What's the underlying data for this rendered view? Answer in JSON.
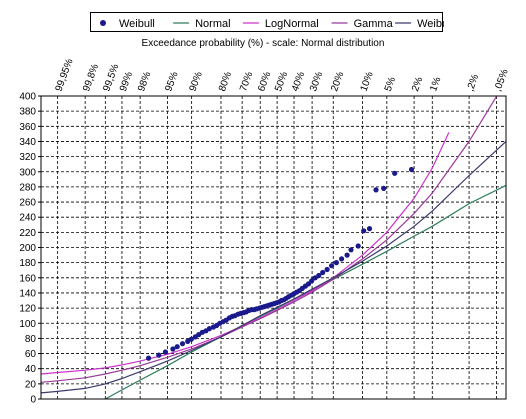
{
  "chart_data": {
    "type": "scatter",
    "title": "Exceedance probability (%) - scale: Normal distribution",
    "xaxis": {
      "scale": "normal-probability",
      "tick_labels": [
        "99,95%",
        "99,8%",
        "99,5%",
        "99%",
        "98%",
        "95%",
        "90%",
        "80%",
        "70%",
        "60%",
        "50%",
        "40%",
        "30%",
        "20%",
        "10%",
        "5%",
        "2%",
        "1%",
        ",2%",
        ",05%"
      ],
      "tick_values": [
        99.95,
        99.8,
        99.5,
        99,
        98,
        95,
        90,
        80,
        70,
        60,
        50,
        40,
        30,
        20,
        10,
        5,
        2,
        1,
        0.2,
        0.05
      ],
      "range": [
        99.98,
        0.03
      ]
    },
    "yaxis": {
      "ylim": [
        0,
        400
      ],
      "tick_labels": [
        "0",
        "20",
        "40",
        "60",
        "80",
        "100",
        "120",
        "140",
        "160",
        "180",
        "200",
        "220",
        "240",
        "260",
        "280",
        "300",
        "320",
        "340",
        "360",
        "380",
        "400"
      ],
      "tick_values": [
        0,
        20,
        40,
        60,
        80,
        100,
        120,
        140,
        160,
        180,
        200,
        220,
        240,
        260,
        280,
        300,
        320,
        340,
        360,
        380,
        400
      ]
    },
    "grid": true,
    "legend_placement": "top",
    "legend": [
      {
        "label": "Weibull",
        "kind": "marker",
        "color": "#1a1a8c"
      },
      {
        "label": "Normal",
        "kind": "line",
        "color": "#2e7d5b"
      },
      {
        "label": "LogNormal",
        "kind": "line",
        "color": "#cc33cc"
      },
      {
        "label": "Gamma",
        "kind": "line",
        "color": "#9a3a9a"
      },
      {
        "label": "Weibull",
        "kind": "line",
        "color": "#3a3a6e"
      }
    ],
    "points": {
      "name": "Weibull",
      "color": "#1a1a8c",
      "data": [
        [
          97.3,
          54
        ],
        [
          96.2,
          58
        ],
        [
          95.3,
          62
        ],
        [
          94.1,
          66
        ],
        [
          93.3,
          69
        ],
        [
          92.2,
          73
        ],
        [
          91.0,
          76
        ],
        [
          90.1,
          79
        ],
        [
          89.0,
          82
        ],
        [
          88.0,
          85
        ],
        [
          86.9,
          88
        ],
        [
          85.7,
          90
        ],
        [
          84.5,
          93
        ],
        [
          83.0,
          95
        ],
        [
          81.8,
          97
        ],
        [
          80.5,
          100
        ],
        [
          79.1,
          102
        ],
        [
          77.8,
          104
        ],
        [
          76.3,
          107
        ],
        [
          74.9,
          109
        ],
        [
          73.6,
          110
        ],
        [
          72.1,
          112
        ],
        [
          70.7,
          113
        ],
        [
          69.2,
          114
        ],
        [
          67.8,
          115
        ],
        [
          66.3,
          117
        ],
        [
          64.9,
          118
        ],
        [
          63.4,
          118
        ],
        [
          62.0,
          119
        ],
        [
          60.4,
          120
        ],
        [
          59.0,
          121
        ],
        [
          57.6,
          122
        ],
        [
          56.1,
          123
        ],
        [
          54.7,
          124
        ],
        [
          53.3,
          125
        ],
        [
          51.8,
          126
        ],
        [
          50.4,
          127
        ],
        [
          48.9,
          128
        ],
        [
          47.4,
          130
        ],
        [
          46.0,
          131
        ],
        [
          44.6,
          133
        ],
        [
          43.1,
          135
        ],
        [
          41.6,
          137
        ],
        [
          40.0,
          139
        ],
        [
          38.5,
          141
        ],
        [
          36.9,
          143
        ],
        [
          35.3,
          146
        ],
        [
          33.6,
          149
        ],
        [
          31.9,
          152
        ],
        [
          30.2,
          156
        ],
        [
          28.4,
          160
        ],
        [
          26.6,
          163
        ],
        [
          24.7,
          167
        ],
        [
          22.7,
          171
        ],
        [
          20.7,
          176
        ],
        [
          18.7,
          180
        ],
        [
          16.7,
          185
        ],
        [
          14.7,
          190
        ],
        [
          13.4,
          197
        ],
        [
          11.2,
          202
        ],
        [
          9.7,
          222
        ],
        [
          8.3,
          225
        ],
        [
          6.9,
          276
        ],
        [
          5.5,
          278
        ],
        [
          3.9,
          298
        ],
        [
          2.2,
          303
        ]
      ]
    },
    "series": [
      {
        "name": "Normal",
        "color": "#2e7d5b",
        "x": [
          99.5,
          99,
          98,
          95,
          90,
          80,
          70,
          60,
          50,
          40,
          30,
          20,
          10,
          5,
          2,
          1,
          0.2,
          0.03
        ],
        "values": [
          0,
          12,
          25,
          44,
          62,
          82,
          97,
          109,
          120,
          132,
          144,
          158,
          178,
          195,
          215,
          228,
          258,
          282
        ]
      },
      {
        "name": "LogNormal",
        "color": "#cc33cc",
        "x": [
          99.98,
          99.95,
          99.8,
          99.5,
          99,
          98,
          95,
          90,
          80,
          70,
          60,
          50,
          40,
          30,
          20,
          10,
          5,
          2,
          1,
          0.5
        ],
        "values": [
          33,
          35,
          38,
          41,
          45,
          50,
          59,
          69,
          84,
          96,
          107,
          118,
          130,
          143,
          160,
          190,
          220,
          265,
          305,
          352
        ]
      },
      {
        "name": "Gamma",
        "color": "#9a3a9a",
        "x": [
          99.98,
          99.95,
          99.8,
          99.5,
          99,
          98,
          95,
          90,
          80,
          70,
          60,
          50,
          40,
          30,
          20,
          10,
          5,
          2,
          1,
          0.2,
          0.03
        ],
        "values": [
          22,
          24,
          28,
          33,
          38,
          44,
          55,
          66,
          82,
          95,
          106,
          117,
          128,
          141,
          158,
          185,
          210,
          245,
          272,
          340,
          420
        ]
      },
      {
        "name": "Weibull",
        "color": "#3a3a6e",
        "x": [
          99.98,
          99.95,
          99.8,
          99.5,
          99,
          98,
          95,
          90,
          80,
          70,
          60,
          50,
          40,
          30,
          20,
          10,
          5,
          2,
          1,
          0.2,
          0.03
        ],
        "values": [
          8,
          10,
          14,
          20,
          27,
          36,
          50,
          64,
          82,
          97,
          110,
          121,
          132,
          145,
          160,
          182,
          202,
          228,
          248,
          295,
          340
        ]
      }
    ]
  }
}
